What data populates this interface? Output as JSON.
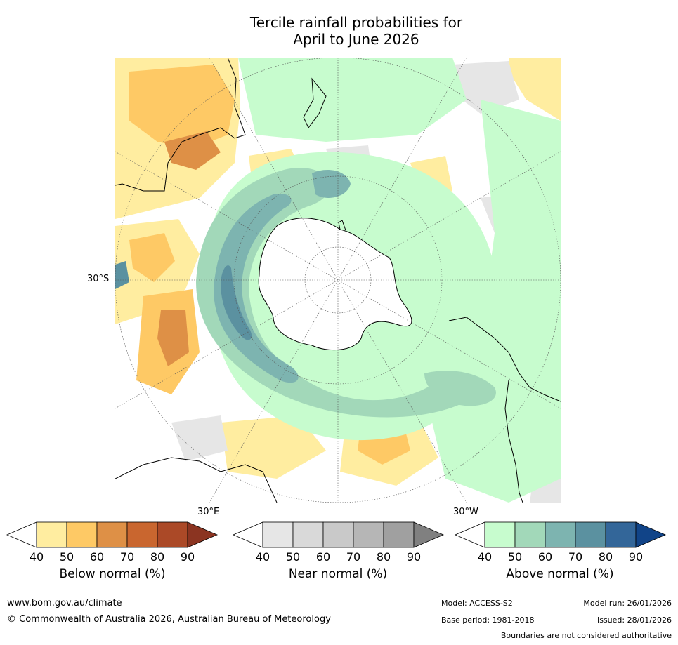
{
  "title_line1": "Tercile rainfall probabilities for",
  "title_line2": "April to June 2026",
  "map": {
    "projection": "south-polar-stereographic",
    "lat_label": "30°S",
    "lon_label_left": "30°E",
    "lon_label_right": "30°W",
    "colors": {
      "ocean_background": "#ffffff",
      "near_normal_light": "#e6e6e6",
      "below_40": "#ffeda0",
      "below_50": "#fec965",
      "below_60": "#de9046",
      "above_40": "#c7fcce",
      "above_50": "#a2d8b9",
      "above_60": "#7db4b0",
      "above_70": "#5b91a0",
      "coastline": "#000000",
      "gridline": "#555555"
    }
  },
  "colorbars": [
    {
      "name": "below",
      "title": "Below normal (%)",
      "ticks": [
        "40",
        "50",
        "60",
        "70",
        "80",
        "90"
      ],
      "colors": [
        "#ffeda0",
        "#fec965",
        "#de9046",
        "#c9662f",
        "#ab4927"
      ],
      "extend_low": "#ffffff",
      "extend_high": "#8b3421"
    },
    {
      "name": "near",
      "title": "Near normal (%)",
      "ticks": [
        "40",
        "50",
        "60",
        "70",
        "80",
        "90"
      ],
      "colors": [
        "#e6e6e6",
        "#d9d9d9",
        "#c9c9c9",
        "#b6b6b6",
        "#a0a0a0"
      ],
      "extend_low": "#ffffff",
      "extend_high": "#808080"
    },
    {
      "name": "above",
      "title": "Above normal (%)",
      "ticks": [
        "40",
        "50",
        "60",
        "70",
        "80",
        "90"
      ],
      "colors": [
        "#c7fcce",
        "#a2d8b9",
        "#7db4b0",
        "#5b91a0",
        "#336699"
      ],
      "extend_low": "#ffffff",
      "extend_high": "#114488"
    }
  ],
  "footer": {
    "website": "www.bom.gov.au/climate",
    "copyright": "© Commonwealth of Australia 2026, Australian Bureau of Meteorology",
    "model": "Model: ACCESS-S2",
    "base_period": "Base period: 1981-2018",
    "model_run": "Model run: 26/01/2026",
    "issued": "Issued: 28/01/2026",
    "disclaimer": "Boundaries are not considered authoritative"
  }
}
